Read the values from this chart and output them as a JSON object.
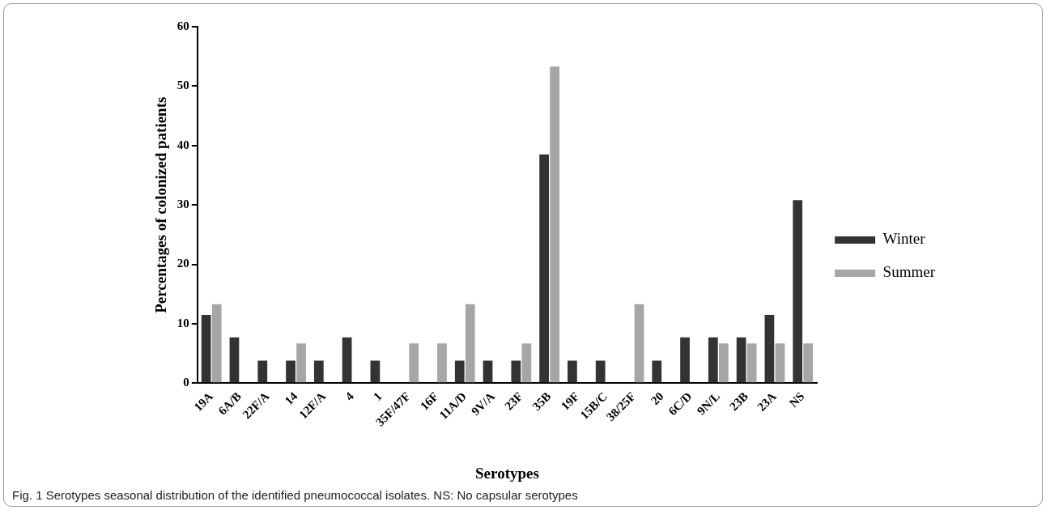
{
  "chart_data": {
    "type": "bar",
    "xlabel": "Serotypes",
    "ylabel": "Percentages of colonized patients",
    "categories": [
      "19A",
      "6A/B",
      "22F/A",
      "14",
      "12F/A",
      "4",
      "1",
      "35F/47F",
      "16F",
      "11A/D",
      "9V/A",
      "23F",
      "35B",
      "19F",
      "15B/C",
      "38/25F",
      "20",
      "6C/D",
      "9N/L",
      "23B",
      "23A",
      "NS"
    ],
    "series": [
      {
        "name": "Winter",
        "color": "#333333",
        "values": [
          11.5,
          7.7,
          3.8,
          3.8,
          3.8,
          7.7,
          3.8,
          0,
          0,
          3.8,
          3.8,
          3.8,
          38.5,
          3.8,
          3.8,
          0,
          3.8,
          7.7,
          7.7,
          7.7,
          11.5,
          30.8
        ]
      },
      {
        "name": "Summer",
        "color": "#a6a6a6",
        "values": [
          13.3,
          0,
          0,
          6.7,
          0,
          0,
          0,
          6.7,
          6.7,
          13.3,
          0,
          6.7,
          53.3,
          0,
          0,
          13.3,
          0,
          0,
          6.7,
          6.7,
          6.7,
          6.7
        ]
      }
    ],
    "ylim": [
      0,
      60
    ],
    "yticks": [
      0,
      10,
      20,
      30,
      40,
      50,
      60
    ],
    "grid": false,
    "legend": "right",
    "annotations": [
      "Fig. 1 Serotypes seasonal distribution of the identified pneumococcal isolates. NS: No capsular serotypes"
    ]
  }
}
